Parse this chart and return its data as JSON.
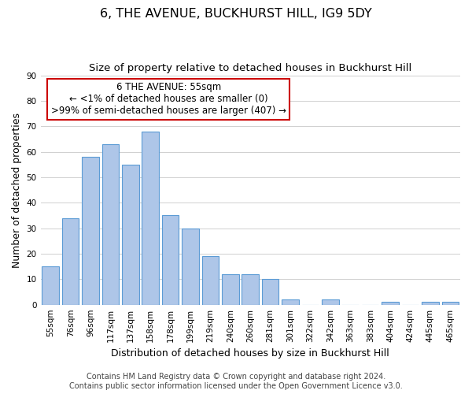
{
  "title": "6, THE AVENUE, BUCKHURST HILL, IG9 5DY",
  "subtitle": "Size of property relative to detached houses in Buckhurst Hill",
  "xlabel": "Distribution of detached houses by size in Buckhurst Hill",
  "ylabel": "Number of detached properties",
  "bar_labels": [
    "55sqm",
    "76sqm",
    "96sqm",
    "117sqm",
    "137sqm",
    "158sqm",
    "178sqm",
    "199sqm",
    "219sqm",
    "240sqm",
    "260sqm",
    "281sqm",
    "301sqm",
    "322sqm",
    "342sqm",
    "363sqm",
    "383sqm",
    "404sqm",
    "424sqm",
    "445sqm",
    "465sqm"
  ],
  "bar_values": [
    15,
    34,
    58,
    63,
    55,
    68,
    35,
    30,
    19,
    12,
    12,
    10,
    2,
    0,
    2,
    0,
    0,
    1,
    0,
    1,
    1
  ],
  "bar_color": "#aec6e8",
  "bar_edge_color": "#5b9bd5",
  "ylim": [
    0,
    90
  ],
  "yticks": [
    0,
    10,
    20,
    30,
    40,
    50,
    60,
    70,
    80,
    90
  ],
  "annotation_title": "6 THE AVENUE: 55sqm",
  "annotation_line1": "← <1% of detached houses are smaller (0)",
  "annotation_line2": ">99% of semi-detached houses are larger (407) →",
  "annotation_box_color": "#ffffff",
  "annotation_box_edge": "#cc0000",
  "footer_line1": "Contains HM Land Registry data © Crown copyright and database right 2024.",
  "footer_line2": "Contains public sector information licensed under the Open Government Licence v3.0.",
  "bg_color": "#ffffff",
  "grid_color": "#d0d0d0",
  "title_fontsize": 11.5,
  "subtitle_fontsize": 9.5,
  "axis_label_fontsize": 9,
  "tick_fontsize": 7.5,
  "annotation_fontsize": 8.5,
  "footer_fontsize": 7
}
